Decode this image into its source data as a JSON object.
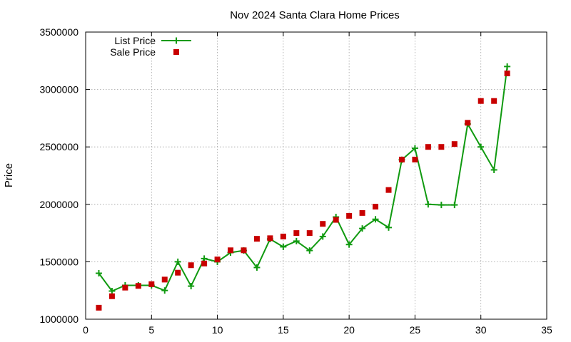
{
  "chart_data": {
    "type": "line",
    "title": "Nov 2024 Santa Clara Home Prices",
    "xlabel": "",
    "ylabel": "Price",
    "xlim": [
      0,
      35
    ],
    "ylim": [
      1000000,
      3500000
    ],
    "xticks": [
      0,
      5,
      10,
      15,
      20,
      25,
      30,
      35
    ],
    "yticks": [
      1000000,
      1500000,
      2000000,
      2500000,
      3000000,
      3500000
    ],
    "grid": true,
    "legend_position": "top-left",
    "x": [
      1,
      2,
      3,
      4,
      5,
      6,
      7,
      8,
      9,
      10,
      11,
      12,
      13,
      14,
      15,
      16,
      17,
      18,
      19,
      20,
      21,
      22,
      23,
      24,
      25,
      26,
      27,
      28,
      29,
      30,
      31,
      32
    ],
    "series": [
      {
        "name": "List Price",
        "style": "line-plus",
        "color": "#109a10",
        "values": [
          1400000,
          1245000,
          1295000,
          1295000,
          1295000,
          1250000,
          1500000,
          1288000,
          1528000,
          1500000,
          1580000,
          1598000,
          1450000,
          1698000,
          1630000,
          1680000,
          1598000,
          1720000,
          1890000,
          1650000,
          1790000,
          1870000,
          1798000,
          2388000,
          2488000,
          2000000,
          1995000,
          1995000,
          2700000,
          2500000,
          2300000,
          3200000
        ]
      },
      {
        "name": "Sale Price",
        "style": "square-markers",
        "color": "#c80000",
        "values": [
          1100000,
          1200000,
          1275000,
          1290000,
          1305000,
          1345000,
          1405000,
          1470000,
          1485000,
          1520000,
          1600000,
          1600000,
          1700000,
          1705000,
          1720000,
          1750000,
          1750000,
          1830000,
          1865000,
          1900000,
          1925000,
          1980000,
          2125000,
          2390000,
          2390000,
          2500000,
          2500000,
          2525000,
          2710000,
          2900000,
          2900000,
          3140000
        ]
      }
    ]
  }
}
